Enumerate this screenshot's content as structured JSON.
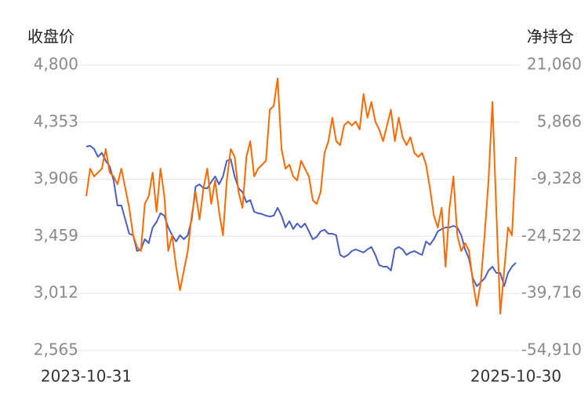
{
  "chart_data": {
    "type": "line",
    "y_label": "收盘价",
    "y2_label": "净持仓",
    "categories": [
      "2023-10-31",
      null,
      null,
      null,
      null,
      null,
      null,
      null,
      null,
      null,
      null,
      null,
      null,
      null,
      null,
      null,
      null,
      null,
      null,
      null,
      null,
      null,
      null,
      null,
      null,
      null,
      null,
      null,
      null,
      null,
      null,
      null,
      null,
      null,
      null,
      null,
      null,
      null,
      null,
      null,
      null,
      null,
      null,
      null,
      null,
      null,
      null,
      null,
      null,
      null,
      null,
      null,
      null,
      null,
      null,
      null,
      null,
      null,
      null,
      null,
      null,
      null,
      null,
      null,
      null,
      null,
      null,
      null,
      null,
      null,
      null,
      null,
      null,
      null,
      null,
      null,
      null,
      null,
      null,
      null,
      null,
      null,
      null,
      null,
      null,
      null,
      null,
      null,
      null,
      null,
      null,
      null,
      null,
      null,
      null,
      null,
      null,
      null,
      null,
      null,
      null,
      null,
      null,
      null,
      null,
      null,
      null,
      null,
      null,
      null,
      "2025-10-30"
    ],
    "series": [
      {
        "name": "收盘价",
        "color": "#4a5fc1",
        "axis": "y",
        "values": [
          4162,
          4168,
          4143,
          4082,
          4113,
          4051,
          4008,
          3898,
          3701,
          3701,
          3591,
          3480,
          3468,
          3345,
          3357,
          3437,
          3406,
          3529,
          3572,
          3640,
          3621,
          3529,
          3468,
          3419,
          3468,
          3437,
          3468,
          3591,
          3849,
          3867,
          3836,
          3836,
          3885,
          3928,
          3867,
          3928,
          4051,
          4063,
          3928,
          3836,
          3806,
          3726,
          3744,
          3652,
          3640,
          3634,
          3621,
          3615,
          3621,
          3683,
          3621,
          3529,
          3578,
          3517,
          3560,
          3529,
          3560,
          3498,
          3437,
          3455,
          3498,
          3511,
          3480,
          3480,
          3468,
          3314,
          3296,
          3314,
          3345,
          3357,
          3345,
          3333,
          3357,
          3376,
          3314,
          3235,
          3222,
          3222,
          3192,
          3357,
          3376,
          3357,
          3314,
          3333,
          3345,
          3327,
          3314,
          3419,
          3394,
          3437,
          3498,
          3517,
          3529,
          3529,
          3541,
          3529,
          3468,
          3357,
          3284,
          3130,
          3069,
          3100,
          3130,
          3192,
          3222,
          3173,
          3173,
          3069,
          3173,
          3222,
          3253
        ]
      },
      {
        "name": "净持仓",
        "color": "#ff6a00",
        "axis": "y2",
        "values": [
          -13793,
          -6488,
          -8575,
          -7532,
          -6488,
          -1271,
          -7532,
          -8575,
          -10662,
          -6488,
          -11706,
          -16923,
          -24228,
          -27358,
          -28402,
          -15880,
          -13793,
          -7532,
          -17967,
          -6488,
          -13793,
          -28402,
          -24228,
          -32576,
          -38837,
          -33619,
          -28402,
          -19010,
          -12750,
          -20054,
          -11706,
          -6488,
          -15880,
          -9619,
          -17967,
          -24228,
          -9619,
          -1271,
          -3358,
          -12750,
          -16923,
          -3358,
          816,
          -8575,
          -6488,
          -5445,
          -4401,
          9164,
          10207,
          17512,
          -1271,
          -6488,
          -5445,
          -8575,
          -9619,
          -4401,
          -6488,
          -8575,
          -14836,
          -15880,
          -12750,
          -2314,
          816,
          7077,
          816,
          -227,
          4990,
          6033,
          4990,
          6033,
          3946,
          13338,
          7077,
          11251,
          6033,
          3946,
          816,
          4990,
          9164,
          816,
          7077,
          1860,
          -227,
          1860,
          -2314,
          -3358,
          -2314,
          -5445,
          -11706,
          -19010,
          -22141,
          -16923,
          -32576,
          -16923,
          -8575,
          -24228,
          -28402,
          -26315,
          -28402,
          -36750,
          -43011,
          -36750,
          -24228,
          -9619,
          11251,
          -17967,
          -45098,
          -33619,
          -22141,
          -24228,
          -3358
        ]
      }
    ],
    "ylim": [
      2565,
      4800
    ],
    "yticks": [
      {
        "value": 2565,
        "label": "2,565"
      },
      {
        "value": 3012,
        "label": "3,012"
      },
      {
        "value": 3459,
        "label": "3,459"
      },
      {
        "value": 3906,
        "label": "3,906"
      },
      {
        "value": 4353,
        "label": "4,353"
      },
      {
        "value": 4800,
        "label": "4,800"
      }
    ],
    "y2lim": [
      -54910,
      21060
    ],
    "y2ticks": [
      {
        "value": -54910,
        "label": "-54,910"
      },
      {
        "value": -39716,
        "label": "-39,716"
      },
      {
        "value": -24522,
        "label": "-24,522"
      },
      {
        "value": -9328,
        "label": "-9,328"
      },
      {
        "value": 5866,
        "label": "5,866"
      },
      {
        "value": 21060,
        "label": "21,060"
      }
    ],
    "grid": true
  }
}
